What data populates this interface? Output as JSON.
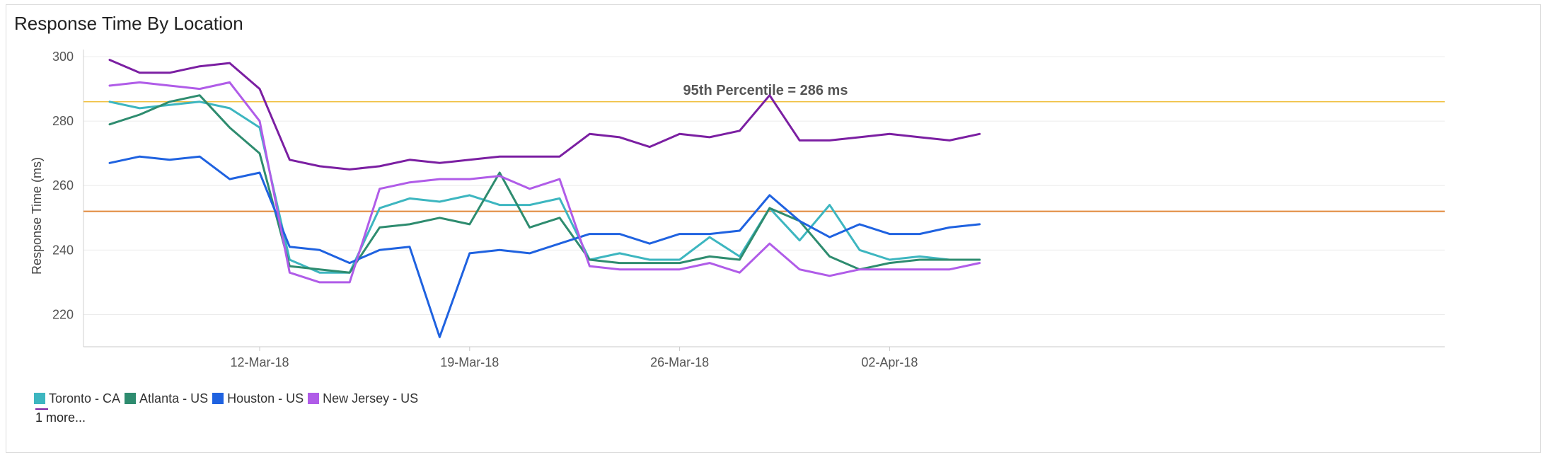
{
  "title": "Response Time By Location",
  "chart_data": {
    "type": "line",
    "ylabel": "Response Time (ms)",
    "xlabel": "",
    "ylim": [
      210,
      300
    ],
    "yticks": [
      220,
      240,
      260,
      280,
      300
    ],
    "x_tick_labels": [
      {
        "index": 5,
        "label": "12-Mar-18"
      },
      {
        "index": 12,
        "label": "19-Mar-18"
      },
      {
        "index": 19,
        "label": "26-Mar-18"
      },
      {
        "index": 26,
        "label": "02-Apr-18"
      }
    ],
    "num_points": 30,
    "reference_lines": [
      {
        "name": "percentile-95-line",
        "value": 286,
        "color": "#f0c040",
        "label": "95th Percentile = 286 ms"
      },
      {
        "name": "average-line",
        "value": 252,
        "color": "#e0883a",
        "label": ""
      }
    ],
    "series": [
      {
        "name": "Toronto - CA",
        "color": "#3db6c0",
        "values": [
          286,
          284,
          285,
          286,
          284,
          278,
          237,
          233,
          233,
          253,
          256,
          255,
          257,
          254,
          254,
          256,
          237,
          239,
          237,
          237,
          244,
          238,
          253,
          243,
          254,
          240,
          237,
          238,
          237,
          237
        ]
      },
      {
        "name": "Atlanta - US",
        "color": "#2e8c6f",
        "values": [
          279,
          282,
          286,
          288,
          278,
          270,
          235,
          234,
          233,
          247,
          248,
          250,
          248,
          264,
          247,
          250,
          237,
          236,
          236,
          236,
          238,
          237,
          253,
          249,
          238,
          234,
          236,
          237,
          237,
          237
        ]
      },
      {
        "name": "Houston - US",
        "color": "#1f62e0",
        "values": [
          267,
          269,
          268,
          269,
          262,
          264,
          241,
          240,
          236,
          240,
          241,
          213,
          239,
          240,
          239,
          242,
          245,
          245,
          242,
          245,
          245,
          246,
          257,
          249,
          244,
          248,
          245,
          245,
          247,
          248
        ]
      },
      {
        "name": "New Jersey - US",
        "color": "#b05ce8",
        "values": [
          291,
          292,
          291,
          290,
          292,
          280,
          233,
          230,
          230,
          259,
          261,
          262,
          262,
          263,
          259,
          262,
          235,
          234,
          234,
          234,
          236,
          233,
          242,
          234,
          232,
          234,
          234,
          234,
          234,
          236
        ]
      },
      {
        "name": "1 more series",
        "color": "#7b1fa2",
        "values": [
          299,
          295,
          295,
          297,
          298,
          290,
          268,
          266,
          265,
          266,
          268,
          267,
          268,
          269,
          269,
          269,
          276,
          275,
          272,
          276,
          275,
          277,
          288,
          274,
          274,
          275,
          276,
          275,
          274,
          276
        ]
      }
    ]
  },
  "legend": {
    "items": [
      "Toronto - CA",
      "Atlanta - US",
      "Houston - US",
      "New Jersey - US"
    ],
    "more_label": "1 more..."
  }
}
